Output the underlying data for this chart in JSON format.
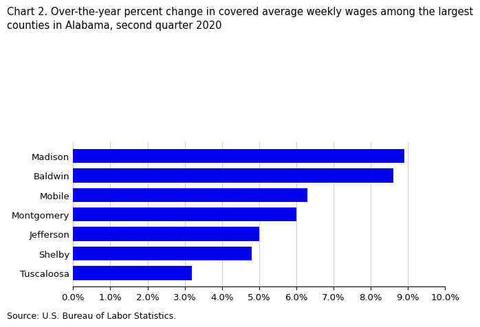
{
  "title": "Chart 2. Over-the-year percent change in covered average weekly wages among the largest\ncounties in Alabama, second quarter 2020",
  "categories": [
    "Tuscaloosa",
    "Shelby",
    "Jefferson",
    "Montgomery",
    "Mobile",
    "Baldwin",
    "Madison"
  ],
  "values": [
    0.032,
    0.048,
    0.05,
    0.06,
    0.063,
    0.086,
    0.089
  ],
  "bar_color": "#0000EE",
  "xlim": [
    0,
    0.1
  ],
  "xticks": [
    0.0,
    0.01,
    0.02,
    0.03,
    0.04,
    0.05,
    0.06,
    0.07,
    0.08,
    0.09,
    0.1
  ],
  "source": "Source: U.S. Bureau of Labor Statistics.",
  "title_fontsize": 10.5,
  "tick_fontsize": 9.5,
  "source_fontsize": 9,
  "bar_height": 0.72
}
